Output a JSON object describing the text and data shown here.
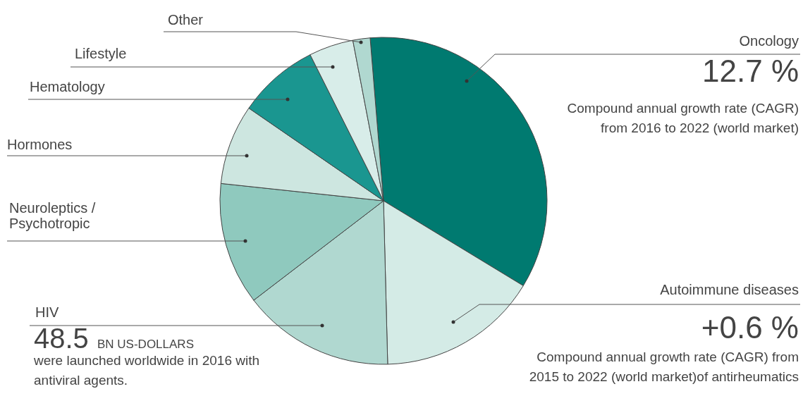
{
  "chart_data": {
    "type": "pie",
    "categories": [
      "Oncology",
      "Autoimmune diseases",
      "HIV",
      "Neuroleptics / Psychotropic",
      "Hormones",
      "Hematology",
      "Lifestyle",
      "Other"
    ],
    "values": [
      35,
      15.9,
      15,
      12.1,
      7.9,
      8,
      4.4,
      1.7
    ],
    "colors": [
      "#007a70",
      "#d4ebe6",
      "#b0d8d0",
      "#8fc9be",
      "#cde6e0",
      "#1a9690",
      "#d8ede9",
      "#b0d8d0"
    ],
    "annotations": [
      "12.7 %",
      "Compound annual growth rate (CAGR)",
      "from 2016 to 2022 (world market)",
      "+0.6 %",
      "Compound annual growth rate  (CAGR) from",
      "2015 to 2022 (world market)of antirheumatics",
      "48.5",
      "BN US-DOLLARS",
      "were launched worldwide in 2016 with",
      "antiviral agents."
    ]
  }
}
